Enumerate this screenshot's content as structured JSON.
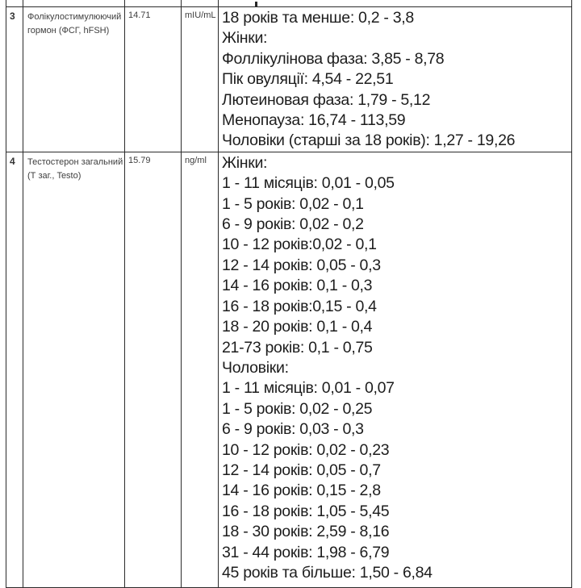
{
  "table": {
    "rows": [
      {
        "num": "3",
        "name_lines": [
          "Фолікулостимулюючий",
          "гормон (ФСГ, hFSH)"
        ],
        "value": "14.71",
        "unit": "mIU/mL",
        "reference": [
          "18 років та менше: 0,2 - 3,8",
          "Жінки:",
          "Фоллікулінова фаза: 3,85 - 8,78",
          "Пік овуляції: 4,54 - 22,51",
          "Лютеиновая фаза: 1,79 - 5,12",
          "Менопауза: 16,74 - 113,59",
          "Чоловіки (старші за 18 років): 1,27 - 19,26"
        ]
      },
      {
        "num": "4",
        "name_lines": [
          "Тестостерон загальний",
          "(Т заг., Testo)"
        ],
        "value": "15.79",
        "unit": "ng/ml",
        "reference": [
          "Жінки:",
          "1 - 11 місяців: 0,01 - 0,05",
          "1 - 5 років: 0,02 - 0,1",
          "6 - 9 років: 0,02 - 0,2",
          "10 - 12 років:0,02 - 0,1",
          "12 - 14 років: 0,05 - 0,3",
          "14 - 16 років: 0,1 - 0,3",
          "16 - 18 років:0,15 - 0,4",
          "18 - 20 років: 0,1 - 0,4",
          "21-73 років: 0,1 - 0,75",
          "Чоловіки:",
          "1 - 11 місяців: 0,01 - 0,07",
          "1 - 5 років: 0,02 - 0,25",
          "6 - 9 років: 0,03 - 0,3",
          "10 - 12 років: 0,02 - 0,23",
          "12 - 14 років: 0,05 - 0,7",
          "14 - 16 років: 0,15 - 2,8",
          "16 - 18 років: 1,05 - 5,45",
          "18 - 30 років: 2,59 - 8,16",
          "31 - 44 років: 1,98 - 6,79",
          "45 років та більше: 1,50 - 6,84"
        ]
      }
    ]
  }
}
